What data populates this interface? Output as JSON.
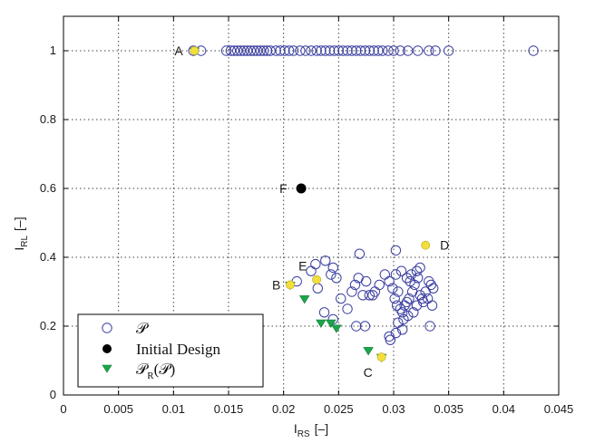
{
  "chart_data": {
    "type": "scatter",
    "xlabel": {
      "main": "I",
      "sub": "RS",
      "unit": "[–]"
    },
    "ylabel": {
      "main": "I",
      "sub": "RL",
      "unit": "[–]"
    },
    "xlim": [
      0,
      0.045
    ],
    "ylim": [
      0,
      1.1
    ],
    "xticks": [
      0,
      0.005,
      0.01,
      0.015,
      0.02,
      0.025,
      0.03,
      0.035,
      0.04,
      0.045
    ],
    "xtick_labels": [
      "0",
      "0.005",
      "0.01",
      "0.015",
      "0.02",
      "0.025",
      "0.03",
      "0.035",
      "0.04",
      "0.045"
    ],
    "yticks": [
      0,
      0.2,
      0.4,
      0.6,
      0.8,
      1.0
    ],
    "ytick_labels": [
      "0",
      "0.2",
      "0.4",
      "0.6",
      "0.8",
      "1"
    ],
    "grid": true,
    "legend": {
      "position": "bottom-left",
      "entries": [
        {
          "label": "𝒫",
          "sub": "",
          "tail": "",
          "marker": "open-circle"
        },
        {
          "label": "Initial Design",
          "sub": "",
          "tail": "",
          "marker": "filled-circle"
        },
        {
          "label": "𝒫",
          "sub": "R",
          "tail": "(𝒫)",
          "marker": "down-triangle"
        }
      ]
    },
    "colors": {
      "population": "#3b3fa0",
      "initial": "#000000",
      "front": "#1aa64b",
      "highlight": "#f3df3c"
    },
    "series": [
      {
        "name": "𝒫",
        "marker": "open-circle",
        "x": [
          0.0118,
          0.0125,
          0.0148,
          0.0152,
          0.0155,
          0.0158,
          0.0161,
          0.0164,
          0.0167,
          0.017,
          0.0173,
          0.0176,
          0.0179,
          0.0182,
          0.0185,
          0.0188,
          0.0193,
          0.0197,
          0.0201,
          0.0205,
          0.0209,
          0.0215,
          0.022,
          0.0225,
          0.023,
          0.0234,
          0.0238,
          0.0242,
          0.0246,
          0.025,
          0.0254,
          0.0258,
          0.0262,
          0.0266,
          0.027,
          0.0274,
          0.0278,
          0.0282,
          0.0286,
          0.029,
          0.0295,
          0.03,
          0.0306,
          0.0313,
          0.0322,
          0.0332,
          0.0338,
          0.035,
          0.0427,
          0.0212,
          0.0238,
          0.0245,
          0.0229,
          0.0225,
          0.0243,
          0.0248,
          0.0237,
          0.0252,
          0.0231,
          0.0262,
          0.0268,
          0.0272,
          0.0265,
          0.0275,
          0.0278,
          0.0283,
          0.0287,
          0.0269,
          0.0258,
          0.0245,
          0.0274,
          0.0281,
          0.0292,
          0.0296,
          0.0299,
          0.0301,
          0.0303,
          0.0306,
          0.0308,
          0.031,
          0.0312,
          0.0314,
          0.0317,
          0.0319,
          0.0322,
          0.0324,
          0.0327,
          0.0329,
          0.0332,
          0.0334,
          0.0336,
          0.0297,
          0.0302,
          0.0304,
          0.0309,
          0.0313,
          0.0318,
          0.0321,
          0.0326,
          0.0331,
          0.0335,
          0.0302,
          0.0312,
          0.0333,
          0.0296,
          0.0308,
          0.0324,
          0.0321,
          0.0316,
          0.0315,
          0.0307,
          0.0302,
          0.0304,
          0.0266
        ],
        "y": [
          1,
          1,
          1,
          1,
          1,
          1,
          1,
          1,
          1,
          1,
          1,
          1,
          1,
          1,
          1,
          1,
          1,
          1,
          1,
          1,
          1,
          1,
          1,
          1,
          1,
          1,
          1,
          1,
          1,
          1,
          1,
          1,
          1,
          1,
          1,
          1,
          1,
          1,
          1,
          1,
          1,
          1,
          1,
          1,
          1,
          1,
          1,
          1,
          1,
          0.33,
          0.39,
          0.37,
          0.38,
          0.36,
          0.35,
          0.34,
          0.24,
          0.28,
          0.31,
          0.3,
          0.34,
          0.29,
          0.32,
          0.33,
          0.29,
          0.3,
          0.32,
          0.41,
          0.25,
          0.22,
          0.2,
          0.29,
          0.35,
          0.33,
          0.31,
          0.28,
          0.26,
          0.25,
          0.24,
          0.26,
          0.27,
          0.28,
          0.3,
          0.32,
          0.34,
          0.29,
          0.27,
          0.3,
          0.33,
          0.32,
          0.31,
          0.16,
          0.18,
          0.21,
          0.22,
          0.23,
          0.24,
          0.26,
          0.28,
          0.28,
          0.26,
          0.42,
          0.34,
          0.2,
          0.17,
          0.19,
          0.37,
          0.36,
          0.35,
          0.33,
          0.36,
          0.35,
          0.3,
          0.2
        ]
      },
      {
        "name": "Initial Design",
        "marker": "filled-circle",
        "x": [
          0.0216
        ],
        "y": [
          0.6
        ]
      },
      {
        "name": "𝒫_R(𝒫)",
        "marker": "down-triangle",
        "x": [
          0.0119,
          0.0206,
          0.0219,
          0.0234,
          0.0243,
          0.0248,
          0.0277,
          0.0289
        ],
        "y": [
          1.0,
          0.32,
          0.28,
          0.21,
          0.21,
          0.195,
          0.13,
          0.11
        ]
      },
      {
        "name": "",
        "marker": "highlight-circle",
        "x": [
          0.0119,
          0.0206,
          0.023,
          0.0289,
          0.0329
        ],
        "y": [
          1.0,
          0.32,
          0.335,
          0.11,
          0.435
        ]
      }
    ],
    "annotations": [
      {
        "text": "A",
        "x": 0.0119,
        "y": 1.0
      },
      {
        "text": "B",
        "x": 0.0206,
        "y": 0.32
      },
      {
        "text": "C",
        "x": 0.0289,
        "y": 0.11
      },
      {
        "text": "D",
        "x": 0.0329,
        "y": 0.435
      },
      {
        "text": "E",
        "x": 0.023,
        "y": 0.335
      },
      {
        "text": "F",
        "x": 0.0216,
        "y": 0.6
      }
    ]
  }
}
